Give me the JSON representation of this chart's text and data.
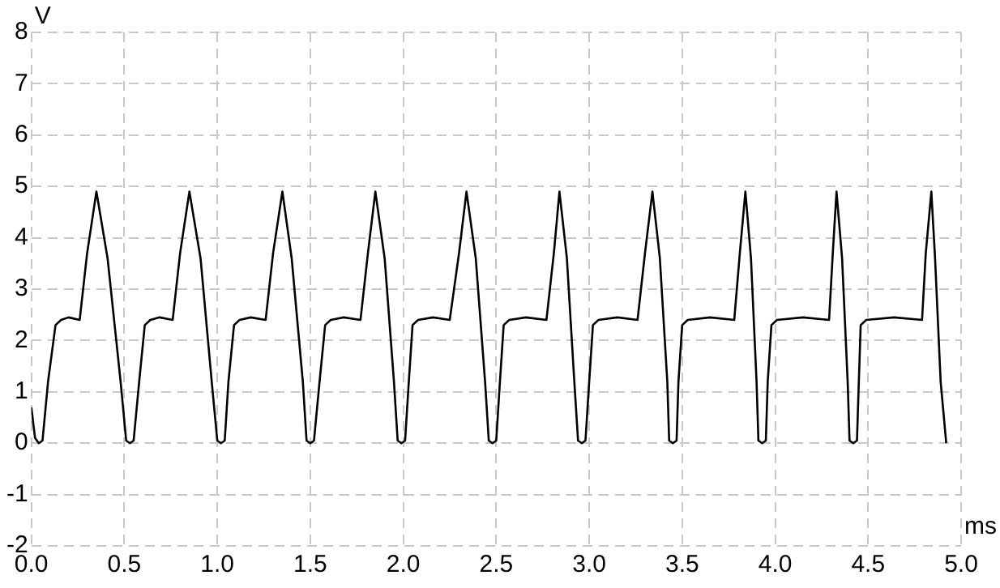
{
  "chart_data": {
    "type": "line",
    "xlabel": "ms",
    "ylabel": "V",
    "xlim": [
      0,
      5
    ],
    "ylim": [
      -2,
      8
    ],
    "xticks": [
      {
        "value": 0,
        "label": "0.0"
      },
      0.5,
      {
        "value": 1,
        "label": "1.0"
      },
      1.5,
      {
        "value": 2,
        "label": "2.0"
      },
      2.5,
      {
        "value": 3,
        "label": "3.0"
      },
      3.5,
      {
        "value": 4,
        "label": "4.0"
      },
      4.5,
      {
        "value": 5,
        "label": "5.0"
      }
    ],
    "yticks": [
      -2,
      -1,
      0,
      1,
      2,
      3,
      4,
      5,
      6,
      7,
      8
    ],
    "grid": true,
    "legend": false,
    "marker": "none",
    "line_style": "solid",
    "series": [
      {
        "color": "#000000",
        "x": [
          0,
          0.02,
          0.04,
          0.06,
          0.09,
          0.13,
          0.16,
          0.2,
          0.26,
          0.3,
          0.35,
          0.41,
          0.48,
          0.51,
          0.53,
          0.55,
          0.58,
          0.61,
          0.64,
          0.69,
          0.76,
          0.8,
          0.85,
          0.91,
          0.97,
          1.0,
          1.02,
          1.04,
          1.06,
          1.09,
          1.12,
          1.18,
          1.26,
          1.3,
          1.35,
          1.4,
          1.46,
          1.48,
          1.5,
          1.52,
          1.55,
          1.58,
          1.61,
          1.68,
          1.77,
          1.81,
          1.85,
          1.9,
          1.95,
          1.97,
          1.99,
          2.01,
          2.03,
          2.05,
          2.08,
          2.16,
          2.25,
          2.3,
          2.34,
          2.39,
          2.44,
          2.46,
          2.48,
          2.5,
          2.52,
          2.54,
          2.57,
          2.66,
          2.77,
          2.81,
          2.84,
          2.88,
          2.92,
          2.94,
          2.96,
          2.98,
          3.0,
          3.02,
          3.05,
          3.15,
          3.26,
          3.3,
          3.34,
          3.38,
          3.42,
          3.43,
          3.45,
          3.47,
          3.48,
          3.5,
          3.53,
          3.65,
          3.78,
          3.81,
          3.84,
          3.87,
          3.9,
          3.91,
          3.93,
          3.95,
          3.96,
          3.98,
          4.01,
          4.15,
          4.29,
          4.31,
          4.33,
          4.36,
          4.39,
          4.4,
          4.42,
          4.44,
          4.45,
          4.46,
          4.49,
          4.64,
          4.79,
          4.81,
          4.84,
          4.86,
          4.89,
          4.92
        ],
        "values": [
          0.7,
          0.1,
          0,
          0.05,
          1.2,
          2.3,
          2.4,
          2.45,
          2.4,
          3.7,
          4.9,
          3.6,
          1.2,
          0.05,
          0,
          0.05,
          1.2,
          2.3,
          2.4,
          2.45,
          2.4,
          3.7,
          4.9,
          3.6,
          1.2,
          0.05,
          0,
          0.05,
          1.2,
          2.3,
          2.4,
          2.45,
          2.4,
          3.7,
          4.9,
          3.6,
          1.2,
          0.05,
          0,
          0.05,
          1.2,
          2.3,
          2.4,
          2.45,
          2.4,
          3.7,
          4.9,
          3.6,
          1.2,
          0.05,
          0,
          0.05,
          1.2,
          2.3,
          2.4,
          2.45,
          2.4,
          3.7,
          4.9,
          3.6,
          1.2,
          0.05,
          0,
          0.05,
          1.2,
          2.3,
          2.4,
          2.45,
          2.4,
          3.7,
          4.9,
          3.6,
          1.2,
          0.05,
          0,
          0.05,
          1.2,
          2.3,
          2.4,
          2.45,
          2.4,
          3.7,
          4.9,
          3.6,
          1.2,
          0.05,
          0,
          0.05,
          1.2,
          2.3,
          2.4,
          2.45,
          2.4,
          3.7,
          4.9,
          3.6,
          1.2,
          0.05,
          0,
          0.05,
          1.2,
          2.3,
          2.4,
          2.45,
          2.4,
          3.7,
          4.9,
          3.6,
          1.2,
          0.05,
          0,
          0.05,
          1.2,
          2.3,
          2.4,
          2.45,
          2.4,
          3.7,
          4.9,
          3.6,
          1.2,
          0
        ]
      }
    ]
  }
}
